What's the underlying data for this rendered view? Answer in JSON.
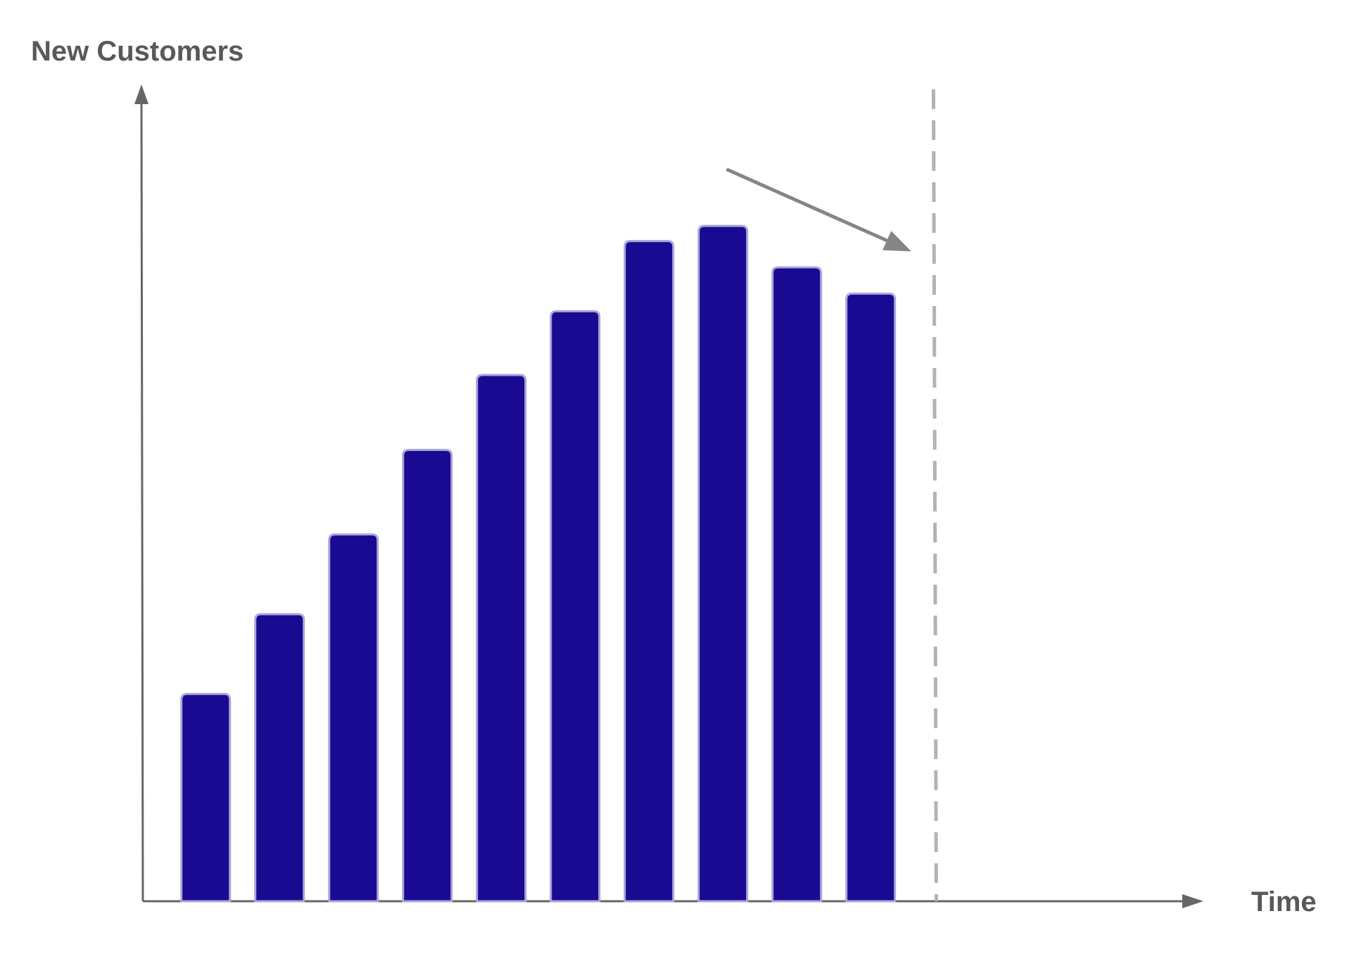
{
  "chart_data": {
    "type": "bar",
    "title": "",
    "ylabel": "New Customers",
    "xlabel": "Time",
    "categories": [
      "",
      "",
      "",
      "",
      "",
      "",
      "",
      "",
      "",
      ""
    ],
    "values": [
      26,
      36,
      46,
      56.6,
      66,
      74,
      82.8,
      84.7,
      79.5,
      76.2
    ],
    "ylim": [
      0,
      102
    ],
    "xlim": [
      0,
      14
    ],
    "grid": false,
    "legend": "none",
    "annotations": {
      "trend_arrow": {
        "from": [
          7.9,
          91.8
        ],
        "to": [
          10.4,
          81.5
        ],
        "meaning": "declining trend"
      },
      "dashed_line_x": 10.7
    },
    "colors": {
      "bar_fill": "#1a0a91",
      "bar_stroke": "#a9a6dc",
      "axis": "#666666",
      "axis_text": "#595959",
      "trend_arrow": "#858585",
      "dashed_line": "#b3b3b3",
      "background": "#ffffff"
    }
  }
}
